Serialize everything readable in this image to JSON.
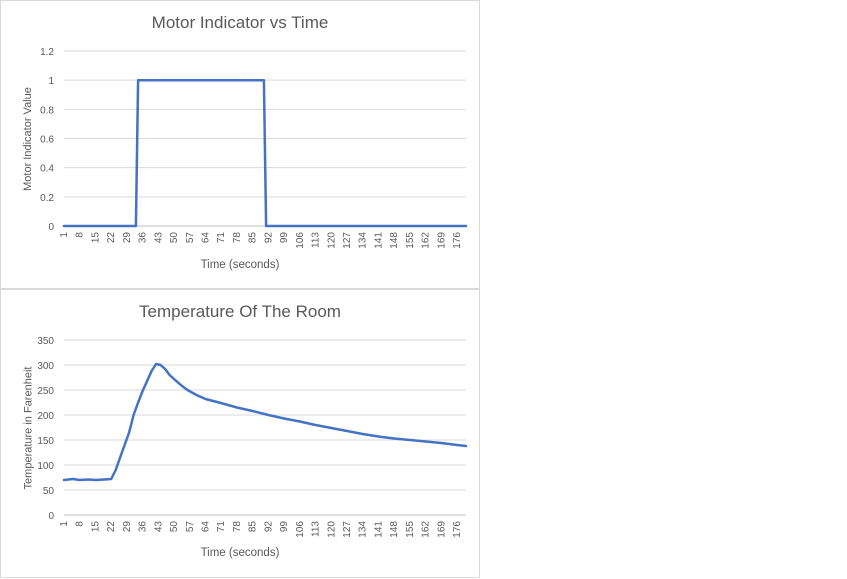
{
  "colors": {
    "series": "#4472c4",
    "gridline": "#d9d9d9",
    "text": "#595959",
    "panel_border": "#d9d9d9"
  },
  "chart_data": [
    {
      "type": "line",
      "title": "Motor Indicator vs Time",
      "xlabel": "Time (seconds)",
      "ylabel": "Motor Indicator Value",
      "ylim": [
        0,
        1.2
      ],
      "y_ticks": [
        "0",
        "0.2",
        "0.4",
        "0.6",
        "0.8",
        "1",
        "1.2"
      ],
      "x_tick_labels": [
        "1",
        "8",
        "15",
        "22",
        "29",
        "36",
        "43",
        "50",
        "57",
        "64",
        "71",
        "78",
        "85",
        "92",
        "99",
        "106",
        "113",
        "120",
        "127",
        "134",
        "141",
        "148",
        "155",
        "162",
        "169",
        "176"
      ],
      "x_range": [
        1,
        180
      ],
      "grid": true,
      "legend": "none",
      "series": [
        {
          "x": [
            1,
            33,
            34,
            90,
            91,
            180
          ],
          "y": [
            0,
            0,
            1,
            1,
            0,
            0
          ]
        }
      ]
    },
    {
      "type": "line",
      "title": "Temperature Of The Room",
      "xlabel": "Time (seconds)",
      "ylabel": "Temperature  in Farenheit",
      "ylim": [
        0,
        350
      ],
      "y_ticks": [
        "0",
        "50",
        "100",
        "150",
        "200",
        "250",
        "300",
        "350"
      ],
      "x_tick_labels": [
        "1",
        "8",
        "15",
        "22",
        "29",
        "36",
        "43",
        "50",
        "57",
        "64",
        "71",
        "78",
        "85",
        "92",
        "99",
        "106",
        "113",
        "120",
        "127",
        "134",
        "141",
        "148",
        "155",
        "162",
        "169",
        "176"
      ],
      "x_range": [
        1,
        180
      ],
      "grid": true,
      "legend": "none",
      "series": [
        {
          "x": [
            1,
            5,
            8,
            12,
            15,
            19,
            22,
            24,
            26,
            28,
            30,
            32,
            34,
            36,
            38,
            40,
            42,
            44,
            46,
            48,
            50,
            53,
            56,
            60,
            64,
            70,
            78,
            85,
            92,
            99,
            106,
            113,
            120,
            127,
            134,
            141,
            148,
            155,
            162,
            169,
            176,
            180
          ],
          "y": [
            70,
            72,
            70,
            71,
            70,
            71,
            72,
            90,
            115,
            140,
            165,
            200,
            225,
            248,
            268,
            288,
            302,
            300,
            292,
            280,
            272,
            260,
            250,
            240,
            232,
            225,
            215,
            208,
            200,
            193,
            187,
            180,
            174,
            168,
            162,
            157,
            153,
            150,
            147,
            144,
            140,
            138
          ]
        }
      ]
    }
  ]
}
